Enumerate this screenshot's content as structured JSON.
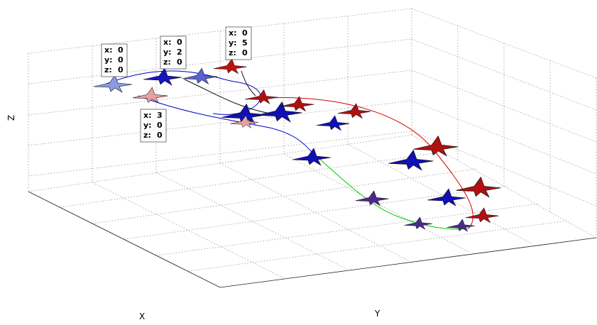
{
  "axes": {
    "x_label": "X",
    "y_label": "Y",
    "z_label": "Z"
  },
  "datatip_labels": [
    "x:",
    "y:",
    "z:"
  ],
  "datatips": [
    {
      "x": 0,
      "y": 0,
      "z": 0
    },
    {
      "x": 0,
      "y": 2,
      "z": 0
    },
    {
      "x": 0,
      "y": 5,
      "z": 0
    },
    {
      "x": 3,
      "y": 0,
      "z": 0
    }
  ]
}
